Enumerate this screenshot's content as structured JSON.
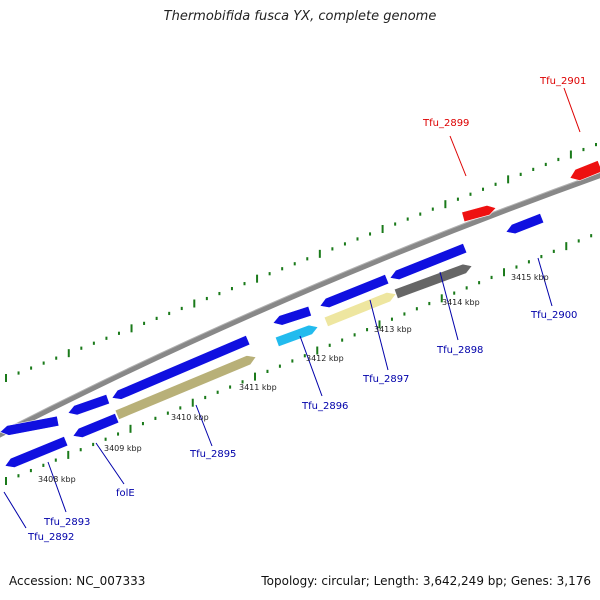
{
  "title": "Thermobifida fusca YX, complete genome",
  "footer": {
    "accession": "Accession: NC_007333",
    "topology": "Topology: circular; Length: 3,642,249 bp; Genes: 3,176"
  },
  "colors": {
    "backbone": "#888888",
    "tick": "#1a7a1a",
    "blue": "#1010e0",
    "red": "#ee1111",
    "cyan": "#22bbee",
    "khaki": "#b8b078",
    "paleyellow": "#eee6a0",
    "gray": "#666666",
    "label_blue": "#0000aa",
    "label_red": "#dd0000"
  },
  "kbp_labels": [
    "3408 kbp",
    "3409 kbp",
    "3410 kbp",
    "3411 kbp",
    "3412 kbp",
    "3413 kbp",
    "3414 kbp",
    "3415 kbp"
  ],
  "gene_labels": [
    "Tfu_2892",
    "Tfu_2893",
    "folE",
    "Tfu_2895",
    "Tfu_2896",
    "Tfu_2897",
    "Tfu_2898",
    "Tfu_2899",
    "Tfu_2900",
    "Tfu_2901"
  ]
}
